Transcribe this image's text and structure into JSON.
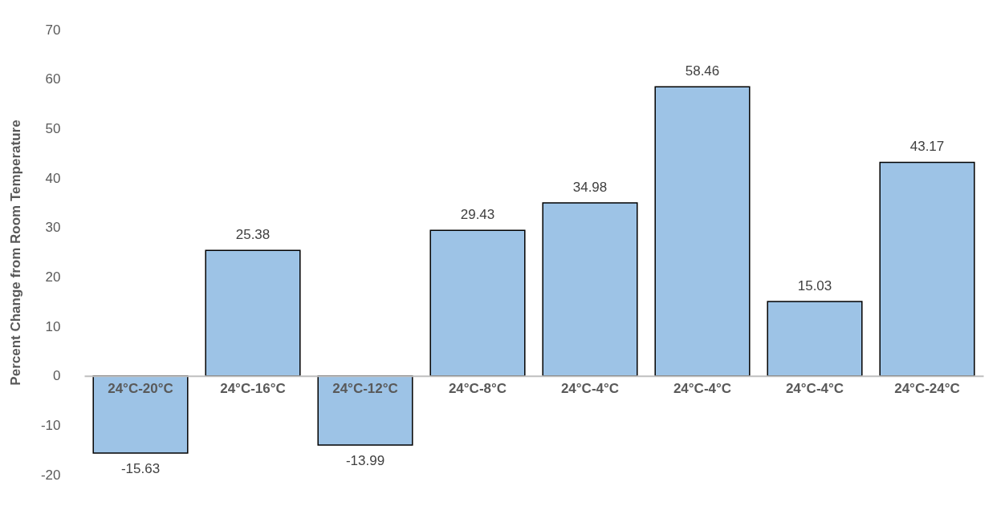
{
  "chart_data": {
    "type": "bar",
    "ylabel": "Percent Change from Room Temperature",
    "categories": [
      "24°C-20°C",
      "24°C-16°C",
      "24°C-12°C",
      "24°C-8°C",
      "24°C-4°C",
      "24°C-4°C",
      "24°C-4°C",
      "24°C-24°C"
    ],
    "values": [
      -15.63,
      25.38,
      -13.99,
      29.43,
      34.98,
      58.46,
      15.03,
      43.17
    ],
    "color": "#9dc3e6",
    "ylim": [
      -20,
      70
    ],
    "yticks": [
      -20,
      -10,
      0,
      10,
      20,
      30,
      40,
      50,
      60,
      70
    ],
    "grid": false,
    "data_labels": true
  }
}
